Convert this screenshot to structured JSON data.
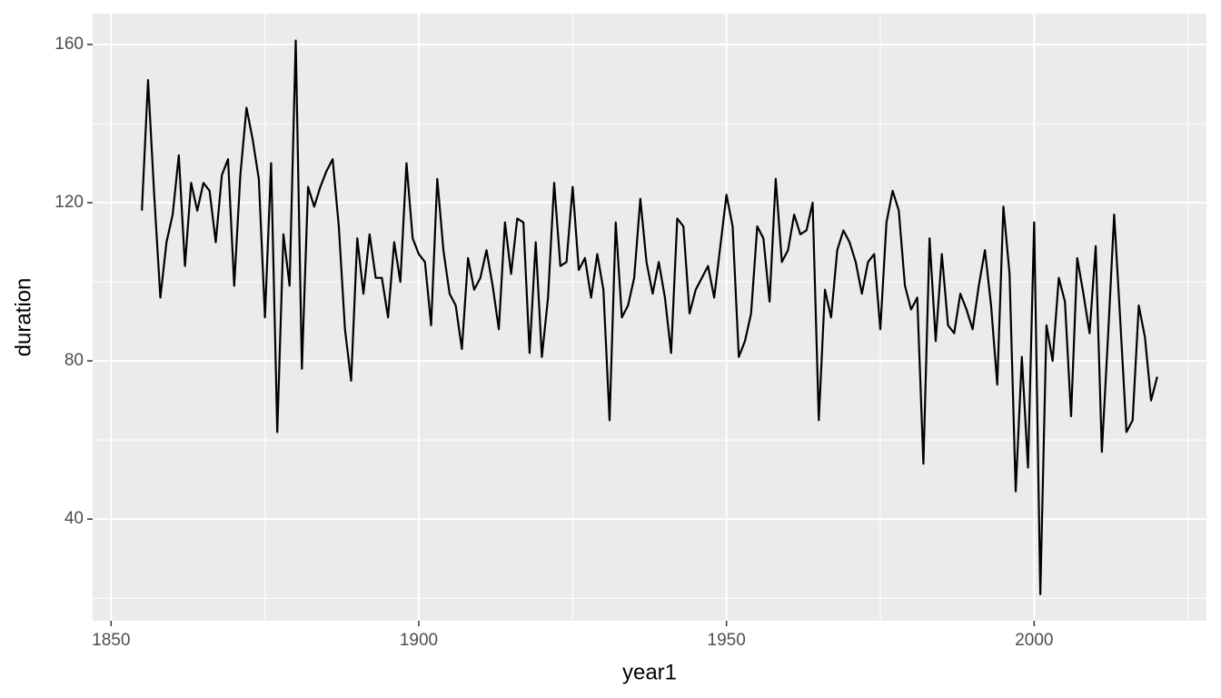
{
  "chart_data": {
    "type": "line",
    "x_label": "year1",
    "y_label": "duration",
    "x": [
      1855,
      1856,
      1857,
      1858,
      1859,
      1860,
      1861,
      1862,
      1863,
      1864,
      1865,
      1866,
      1867,
      1868,
      1869,
      1870,
      1871,
      1872,
      1873,
      1874,
      1875,
      1876,
      1877,
      1878,
      1879,
      1880,
      1881,
      1882,
      1883,
      1884,
      1885,
      1886,
      1887,
      1888,
      1889,
      1890,
      1891,
      1892,
      1893,
      1894,
      1895,
      1896,
      1897,
      1898,
      1899,
      1900,
      1901,
      1902,
      1903,
      1904,
      1905,
      1906,
      1907,
      1908,
      1909,
      1910,
      1911,
      1912,
      1913,
      1914,
      1915,
      1916,
      1917,
      1918,
      1919,
      1920,
      1921,
      1922,
      1923,
      1924,
      1925,
      1926,
      1927,
      1928,
      1929,
      1930,
      1931,
      1932,
      1933,
      1934,
      1935,
      1936,
      1937,
      1938,
      1939,
      1940,
      1941,
      1942,
      1943,
      1944,
      1945,
      1946,
      1947,
      1948,
      1949,
      1950,
      1951,
      1952,
      1953,
      1954,
      1955,
      1956,
      1957,
      1958,
      1959,
      1960,
      1961,
      1962,
      1963,
      1964,
      1965,
      1966,
      1967,
      1968,
      1969,
      1970,
      1971,
      1972,
      1973,
      1974,
      1975,
      1976,
      1977,
      1978,
      1979,
      1980,
      1981,
      1982,
      1983,
      1984,
      1985,
      1986,
      1987,
      1988,
      1989,
      1990,
      1991,
      1992,
      1993,
      1994,
      1995,
      1996,
      1997,
      1998,
      1999,
      2000,
      2001,
      2002,
      2003,
      2004,
      2005,
      2006,
      2007,
      2008,
      2009,
      2010,
      2011,
      2012,
      2013,
      2014,
      2015,
      2016,
      2017,
      2018,
      2019,
      2020
    ],
    "series": [
      {
        "color": "#000000",
        "values": [
          118,
          151,
          122,
          96,
          110,
          117,
          132,
          104,
          125,
          118,
          125,
          123,
          110,
          127,
          131,
          99,
          127,
          144,
          136,
          126,
          91,
          130,
          62,
          112,
          99,
          161,
          78,
          124,
          119,
          124,
          128,
          131,
          114,
          88,
          75,
          111,
          97,
          112,
          101,
          101,
          91,
          110,
          100,
          130,
          111,
          107,
          105,
          89,
          126,
          108,
          97,
          94,
          83,
          106,
          98,
          101,
          108,
          99,
          88,
          115,
          102,
          116,
          115,
          82,
          110,
          81,
          96,
          125,
          104,
          105,
          124,
          103,
          106,
          96,
          107,
          98,
          65,
          115,
          91,
          94,
          101,
          121,
          105,
          97,
          105,
          96,
          82,
          116,
          114,
          92,
          98,
          101,
          104,
          96,
          109,
          122,
          114,
          81,
          85,
          92,
          114,
          111,
          95,
          126,
          105,
          108,
          117,
          112,
          113,
          120,
          65,
          98,
          91,
          108,
          113,
          110,
          105,
          97,
          105,
          107,
          88,
          115,
          123,
          118,
          99,
          93,
          96,
          54,
          111,
          85,
          107,
          89,
          87,
          97,
          93,
          88,
          99,
          108,
          94,
          74,
          119,
          102,
          47,
          81,
          53,
          115,
          21,
          89,
          80,
          101,
          95,
          66,
          106,
          97,
          87,
          109,
          57,
          86,
          117,
          90,
          62,
          65,
          94,
          86,
          70,
          76
        ]
      }
    ],
    "xlim": [
      1847,
      2028
    ],
    "ylim": [
      14.3,
      167.8
    ],
    "xticks": [
      1850,
      1900,
      1950,
      2000
    ],
    "yticks": [
      40,
      80,
      120,
      160
    ],
    "xminor": [
      1875,
      1925,
      1975,
      2025
    ],
    "yminor": [
      20,
      60,
      100,
      140
    ],
    "grid": true
  }
}
